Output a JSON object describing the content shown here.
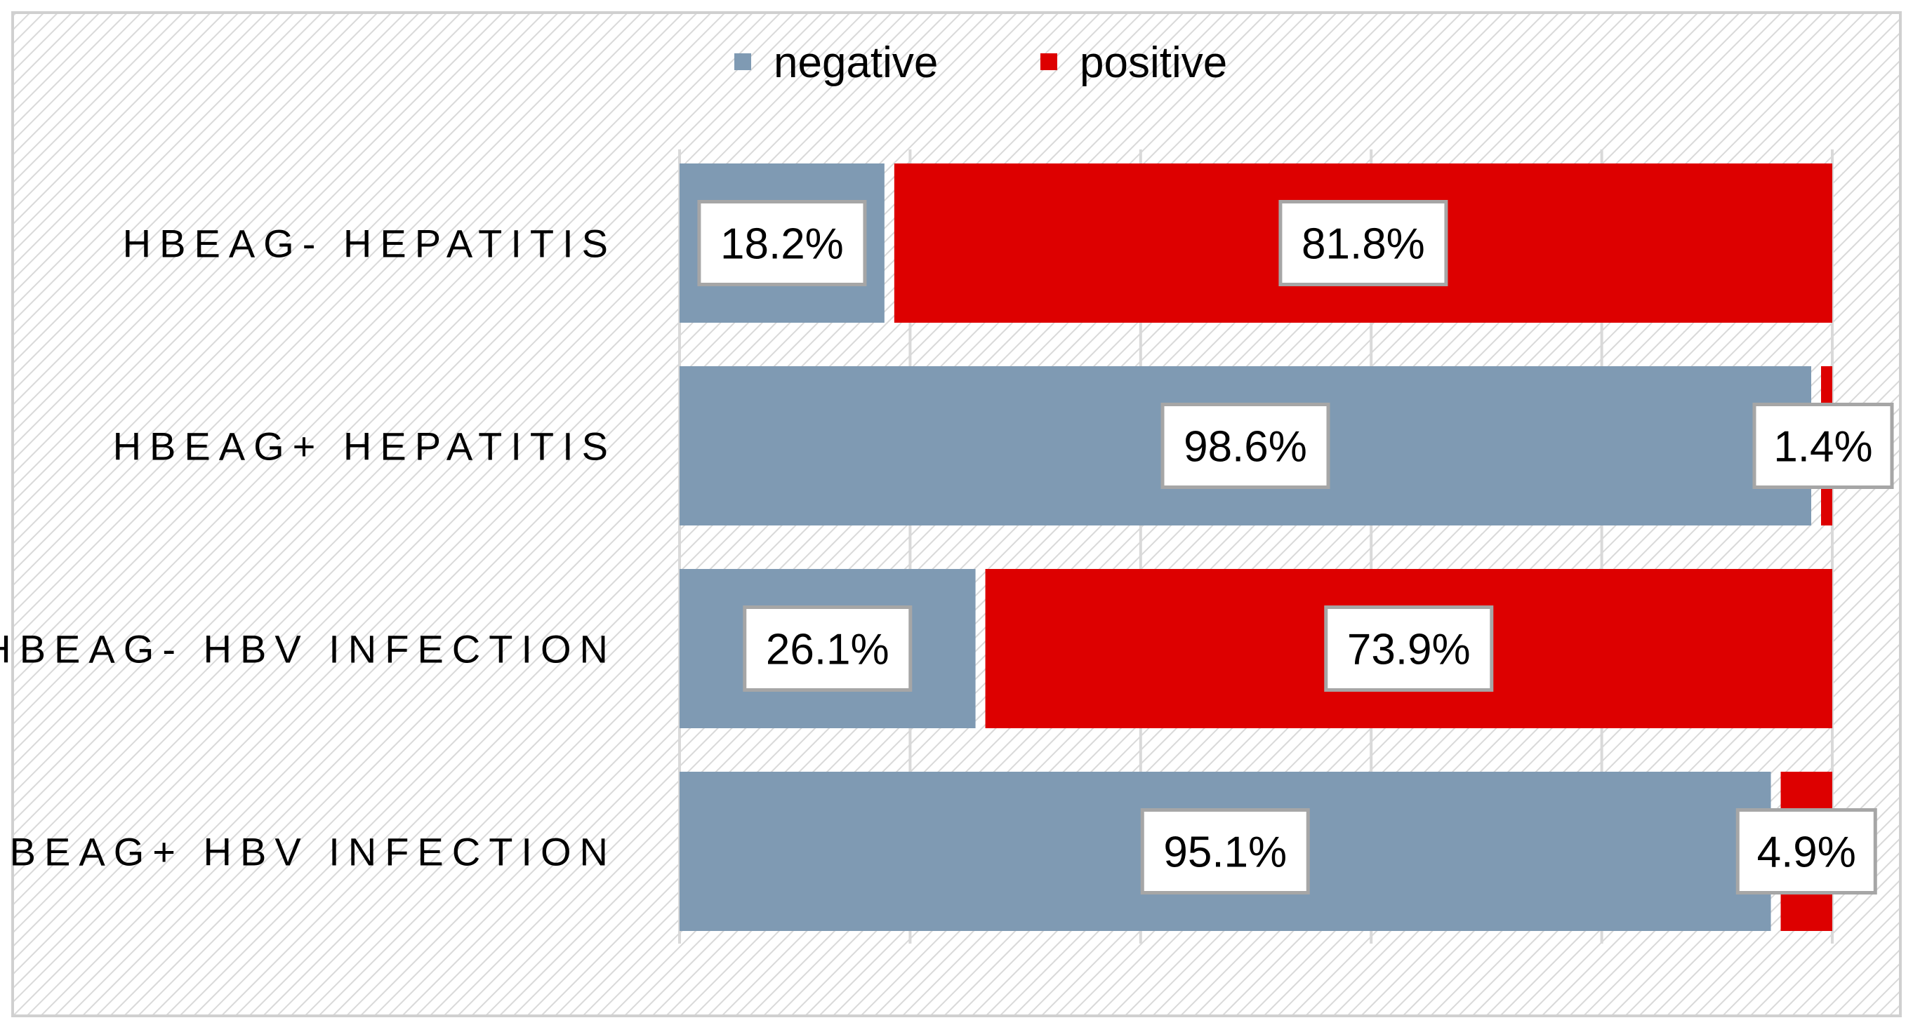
{
  "chart_data": {
    "type": "bar",
    "orientation": "horizontal",
    "stacked": "percent",
    "title": "",
    "xlabel": "",
    "ylabel": "",
    "xlim": [
      0,
      100
    ],
    "categories": [
      "HBEAG- HEPATITIS",
      "HBEAG+ HEPATITIS",
      "HBEAG- HBV INFECTION",
      "HBEAG+ HBV INFECTION"
    ],
    "series": [
      {
        "name": "negative",
        "color": "#7f9ab3",
        "values": [
          18.2,
          98.6,
          26.1,
          95.1
        ],
        "labels": [
          "18.2%",
          "98.6%",
          "26.1%",
          "95.1%"
        ]
      },
      {
        "name": "positive",
        "color": "#dd0000",
        "values": [
          81.8,
          1.4,
          73.9,
          4.9
        ],
        "labels": [
          "81.8%",
          "1.4%",
          "73.9%",
          "4.9%"
        ]
      }
    ],
    "legend": {
      "position": "top-center",
      "entries": [
        "negative",
        "positive"
      ]
    },
    "grid": {
      "vertical": true,
      "style": "tick-marks"
    },
    "background": "hatched-grey"
  }
}
